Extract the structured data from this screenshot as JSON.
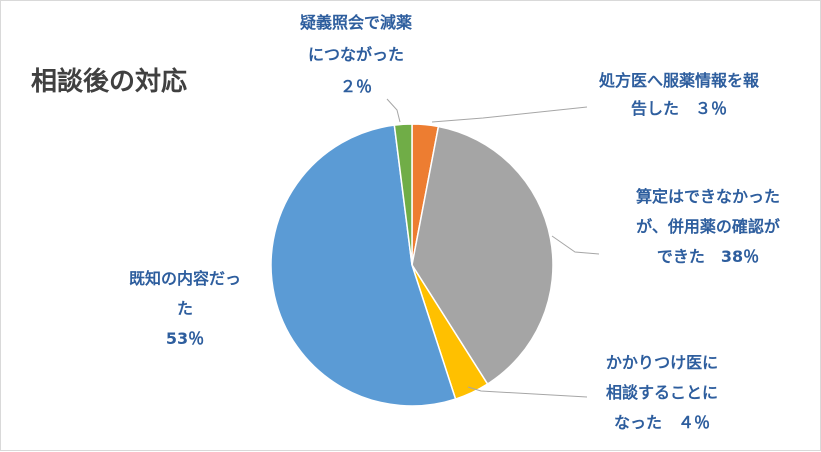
{
  "chart_data": {
    "type": "pie",
    "title": "相談後の対応",
    "slices": [
      {
        "label_lines": [
          "処方医へ服薬情報を報",
          "告した　３％"
        ],
        "value": 3,
        "color": "#ed7d31"
      },
      {
        "label_lines": [
          "算定はできなかった",
          "が、併用薬の確認が",
          "できた　38％"
        ],
        "value": 38,
        "color": "#a5a5a5"
      },
      {
        "label_lines": [
          "かかりつけ医に",
          "相談することに",
          "なった　４％"
        ],
        "value": 4,
        "color": "#ffc000"
      },
      {
        "label_lines": [
          "既知の内容だっ",
          "た",
          "53％"
        ],
        "value": 53,
        "color": "#5b9bd5"
      },
      {
        "label_lines": [
          "疑義照会で減薬",
          "につながった",
          "２％"
        ],
        "value": 2,
        "color": "#70ad47"
      }
    ],
    "label_color": "#2e5e9e",
    "leader_color": "#a6a6a6"
  }
}
